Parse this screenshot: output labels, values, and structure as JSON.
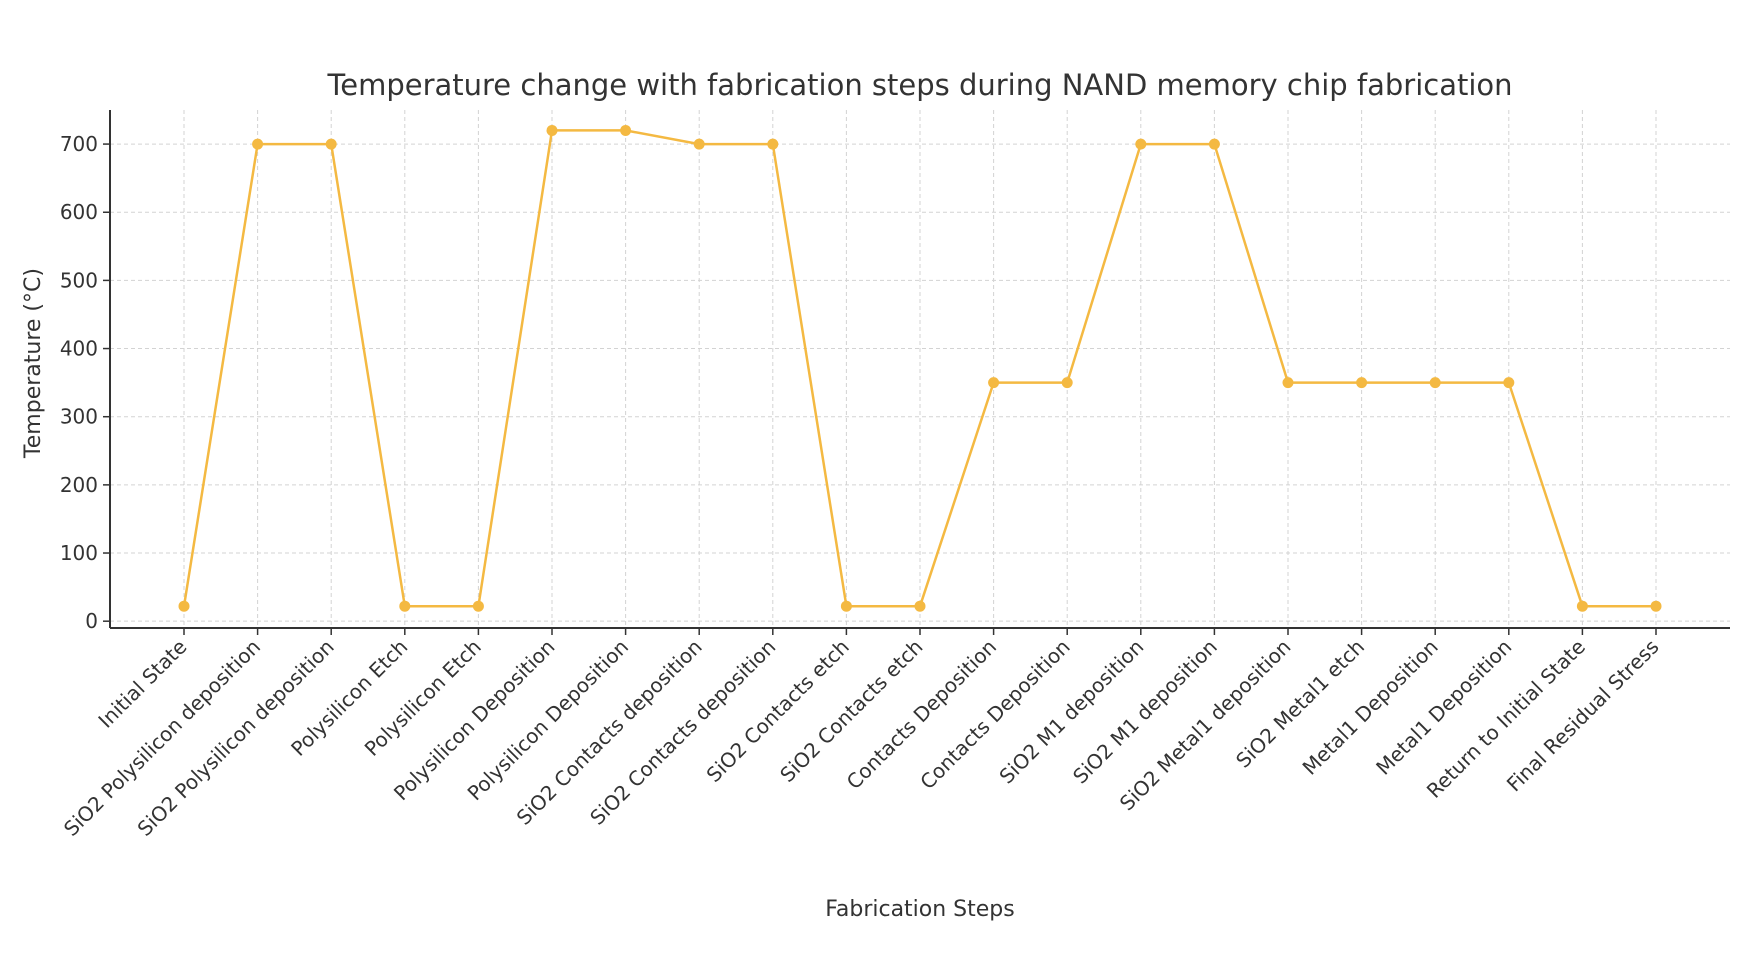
{
  "chart_data": {
    "type": "line",
    "title": "Temperature change with fabrication steps during NAND memory chip fabrication",
    "xlabel": "Fabrication Steps",
    "ylabel": "Temperature (°C)",
    "ylim": [
      -10,
      750
    ],
    "yticks": [
      0,
      100,
      200,
      300,
      400,
      500,
      600,
      700
    ],
    "grid": true,
    "line_color": "#f4b942",
    "categories": [
      "Initial State",
      "SiO2 Polysilicon deposition",
      "SiO2 Polysilicon deposition",
      "Polysilicon Etch",
      "Polysilicon Etch",
      "Polysilicon Deposition",
      "Polysilicon Deposition",
      "SiO2 Contacts deposition",
      "SiO2 Contacts deposition",
      "SiO2 Contacts etch",
      "SiO2 Contacts etch",
      "Contacts Deposition",
      "Contacts Deposition",
      "SiO2 M1 deposition",
      "SiO2 M1 deposition",
      "SiO2 Metal1 deposition",
      "SiO2 Metal1 etch",
      "Metal1 Deposition",
      "Metal1 Deposition",
      "Return to Initial State",
      "Final Residual Stress"
    ],
    "values": [
      22,
      700,
      700,
      22,
      22,
      720,
      720,
      700,
      700,
      22,
      22,
      350,
      350,
      700,
      700,
      350,
      350,
      350,
      350,
      22,
      22
    ]
  }
}
